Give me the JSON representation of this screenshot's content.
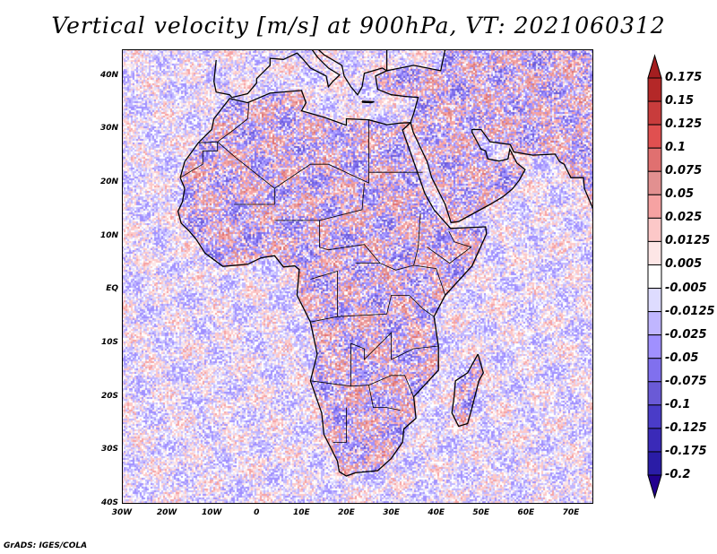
{
  "title": "Vertical velocity [m/s] at 900hPa, VT: 2021060312",
  "footer": "GrADS: IGES/COLA",
  "map": {
    "lon_range": [
      -30,
      75
    ],
    "lat_range": [
      -40,
      45
    ],
    "field": "vertical velocity",
    "level": "900hPa",
    "valid_time": "2021060312"
  },
  "lat_ticks": [
    {
      "v": 40,
      "t": "40N"
    },
    {
      "v": 30,
      "t": "30N"
    },
    {
      "v": 20,
      "t": "20N"
    },
    {
      "v": 10,
      "t": "10N"
    },
    {
      "v": 0,
      "t": "EQ"
    },
    {
      "v": -10,
      "t": "10S"
    },
    {
      "v": -20,
      "t": "20S"
    },
    {
      "v": -30,
      "t": "30S"
    },
    {
      "v": -40,
      "t": "40S"
    }
  ],
  "lon_ticks": [
    {
      "v": -30,
      "t": "30W"
    },
    {
      "v": -20,
      "t": "20W"
    },
    {
      "v": -10,
      "t": "10W"
    },
    {
      "v": 0,
      "t": "0"
    },
    {
      "v": 10,
      "t": "10E"
    },
    {
      "v": 20,
      "t": "20E"
    },
    {
      "v": 30,
      "t": "30E"
    },
    {
      "v": 40,
      "t": "40E"
    },
    {
      "v": 50,
      "t": "50E"
    },
    {
      "v": 60,
      "t": "60E"
    },
    {
      "v": 70,
      "t": "70E"
    }
  ],
  "colorbar": {
    "labels": [
      "0.175",
      "0.15",
      "0.125",
      "0.1",
      "0.075",
      "0.05",
      "0.025",
      "0.0125",
      "0.005",
      "-0.005",
      "-0.0125",
      "-0.025",
      "-0.05",
      "-0.075",
      "-0.1",
      "-0.125",
      "-0.175",
      "-0.2"
    ],
    "colors": [
      "#a41e20",
      "#b42828",
      "#c83c3c",
      "#e05050",
      "#e07070",
      "#e29090",
      "#f6a2a2",
      "#fcc8c8",
      "#fde6e6",
      "#ffffff",
      "#dedcff",
      "#c0b6ff",
      "#a090ff",
      "#8070ee",
      "#6a5ad6",
      "#4a3cc8",
      "#3a2ab8",
      "#2a1ca6",
      "#22008e"
    ]
  }
}
